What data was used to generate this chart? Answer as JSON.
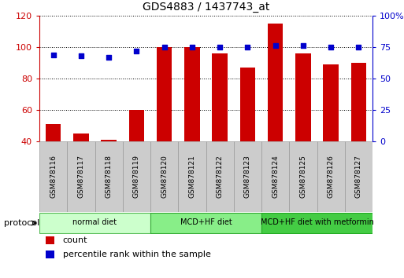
{
  "title": "GDS4883 / 1437743_at",
  "samples": [
    "GSM878116",
    "GSM878117",
    "GSM878118",
    "GSM878119",
    "GSM878120",
    "GSM878121",
    "GSM878122",
    "GSM878123",
    "GSM878124",
    "GSM878125",
    "GSM878126",
    "GSM878127"
  ],
  "counts": [
    51,
    45,
    41,
    60,
    100,
    100,
    96,
    87,
    115,
    96,
    89,
    90
  ],
  "percentile_ranks": [
    69,
    68,
    67,
    72,
    75,
    75,
    75,
    75,
    76,
    76,
    75,
    75
  ],
  "bar_color": "#cc0000",
  "dot_color": "#0000cc",
  "ylim_left": [
    40,
    120
  ],
  "ylim_right": [
    0,
    100
  ],
  "yticks_left": [
    40,
    60,
    80,
    100,
    120
  ],
  "yticks_right": [
    0,
    25,
    50,
    75,
    100
  ],
  "ytick_labels_right": [
    "0",
    "25",
    "50",
    "75",
    "100%"
  ],
  "groups": [
    {
      "label": "normal diet",
      "start": 0,
      "end": 3,
      "color": "#ccffcc",
      "edge": "#55bb55"
    },
    {
      "label": "MCD+HF diet",
      "start": 4,
      "end": 7,
      "color": "#88ee88",
      "edge": "#33aa33"
    },
    {
      "label": "MCD+HF diet with metformin",
      "start": 8,
      "end": 11,
      "color": "#44cc44",
      "edge": "#22aa22"
    }
  ],
  "protocol_label": "protocol",
  "legend_count": "count",
  "legend_percentile": "percentile rank within the sample",
  "tick_area_color": "#cccccc",
  "tick_border_color": "#999999"
}
